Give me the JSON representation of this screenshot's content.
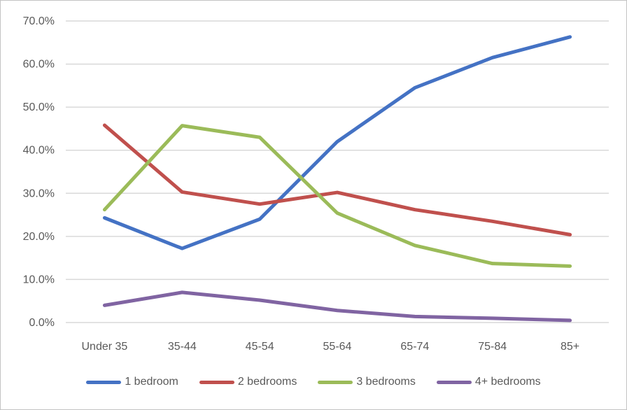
{
  "chart_data": {
    "type": "line",
    "title": "",
    "xlabel": "",
    "ylabel": "",
    "categories": [
      "Under 35",
      "35-44",
      "45-54",
      "55-64",
      "65-74",
      "75-84",
      "85+"
    ],
    "series": [
      {
        "name": "1 bedroom",
        "color": "#4472C4",
        "values": [
          24.3,
          17.2,
          24.0,
          42.0,
          54.5,
          61.5,
          66.3
        ]
      },
      {
        "name": "2 bedrooms",
        "color": "#C0504D",
        "values": [
          45.8,
          30.3,
          27.5,
          30.2,
          26.2,
          23.5,
          20.4
        ]
      },
      {
        "name": "3 bedrooms",
        "color": "#9BBB59",
        "values": [
          26.2,
          45.7,
          43.0,
          25.4,
          17.9,
          13.7,
          13.1
        ]
      },
      {
        "name": "4+ bedrooms",
        "color": "#8064A2",
        "values": [
          4.0,
          7.0,
          5.2,
          2.8,
          1.4,
          1.0,
          0.5
        ]
      }
    ],
    "ylim": [
      0,
      70
    ],
    "ytick_step": 10,
    "ytick_labels": [
      "0.0%",
      "10.0%",
      "20.0%",
      "30.0%",
      "40.0%",
      "50.0%",
      "60.0%",
      "70.0%"
    ],
    "grid": "horizontal",
    "legend_position": "bottom"
  },
  "colors": {
    "gridline": "#D9D9D9",
    "axis_text": "#595959",
    "frame_border": "#C3C3C3",
    "background": "#FFFFFF"
  }
}
